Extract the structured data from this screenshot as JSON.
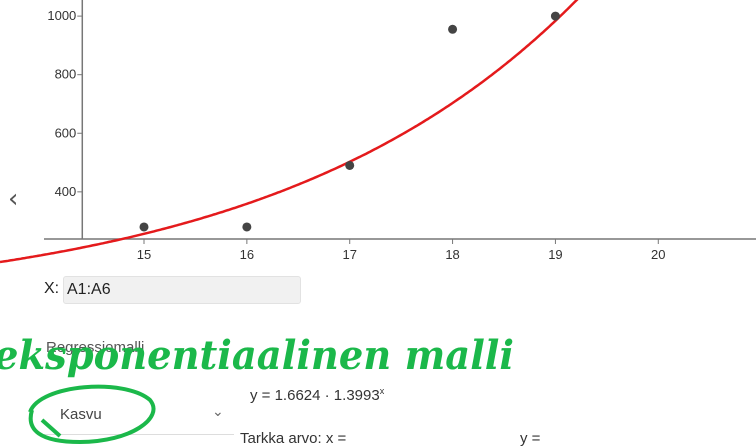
{
  "chart_data": {
    "type": "scatter",
    "points": [
      {
        "x": 15,
        "y": 280
      },
      {
        "x": 16,
        "y": 280
      },
      {
        "x": 17,
        "y": 490
      },
      {
        "x": 18,
        "y": 955
      },
      {
        "x": 19,
        "y": 1000
      }
    ],
    "x_ticks": [
      15,
      16,
      17,
      18,
      19,
      20
    ],
    "y_ticks": [
      400,
      600,
      800,
      1000
    ],
    "xlim": [
      13.6,
      20.95
    ],
    "ylim": [
      239,
      1055
    ],
    "fit": {
      "a": 1.6624,
      "b": 1.3993,
      "color": "#e41a1c"
    },
    "point_color": "#444444",
    "grid": false
  },
  "input": {
    "x_label": "X:",
    "x_value": "A1:A6"
  },
  "model": {
    "label": "Regressiomalli",
    "selected": "Kasvu"
  },
  "result": {
    "equation_prefix": "y = 1.6624 · 1.3993",
    "equation_exp": "x",
    "exact_label": "Tarkka arvo:  x =",
    "exact_y": "y ="
  },
  "annotation": {
    "text": "eksponentiaalinen malli",
    "color": "#1bb84a"
  },
  "icons": {
    "back": "chevron-left-icon",
    "dropdown": "chevron-down-icon"
  }
}
